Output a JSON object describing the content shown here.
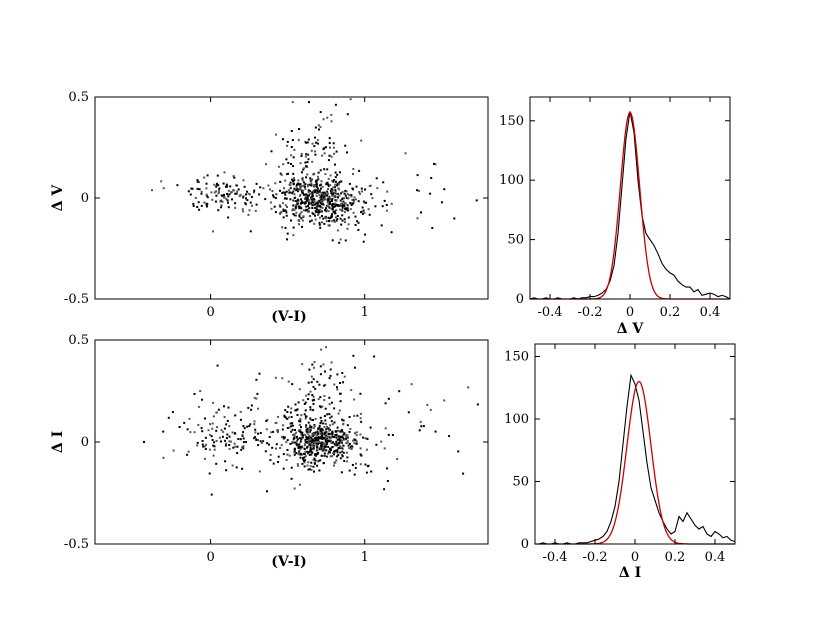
{
  "chart_data": [
    {
      "id": "scatter_v",
      "type": "scatter",
      "xlabel": "(V-I)",
      "ylabel": "Δ V",
      "xlim": [
        -0.75,
        1.8
      ],
      "ylim": [
        -0.5,
        0.5
      ],
      "x_ticks": [
        0,
        1
      ],
      "y_ticks": [
        -0.5,
        0,
        0.5
      ],
      "x_tick_labels": [
        "0",
        "1"
      ],
      "y_tick_labels": [
        "-0.5",
        "0",
        "0.5"
      ],
      "point_color": "#000000",
      "clusters": [
        {
          "center": [
            0.08,
            0.01
          ],
          "spread": [
            0.14,
            0.05
          ],
          "count": 120
        },
        {
          "center": [
            0.7,
            -0.01
          ],
          "spread": [
            0.14,
            0.06
          ],
          "count": 520
        },
        {
          "center": [
            0.68,
            0.22
          ],
          "spread": [
            0.13,
            0.12
          ],
          "count": 110
        },
        {
          "center": [
            0.9,
            0.0
          ],
          "spread": [
            0.4,
            0.12
          ],
          "count": 70
        }
      ]
    },
    {
      "id": "hist_v",
      "type": "line",
      "xlabel": "Δ V",
      "ylabel": "",
      "xlim": [
        -0.5,
        0.5
      ],
      "ylim": [
        0,
        170
      ],
      "x_ticks": [
        -0.4,
        -0.2,
        0,
        0.2,
        0.4
      ],
      "y_ticks": [
        0,
        50,
        100,
        150
      ],
      "x_tick_labels": [
        "-0.4",
        "-0.2",
        "0",
        "0.2",
        "0.4"
      ],
      "y_tick_labels": [
        "0",
        "50",
        "100",
        "150"
      ],
      "series": [
        {
          "name": "histogram",
          "color": "#000000",
          "x": [
            -0.5,
            -0.48,
            -0.46,
            -0.44,
            -0.42,
            -0.4,
            -0.38,
            -0.36,
            -0.34,
            -0.32,
            -0.3,
            -0.28,
            -0.26,
            -0.24,
            -0.22,
            -0.2,
            -0.18,
            -0.16,
            -0.14,
            -0.12,
            -0.1,
            -0.08,
            -0.06,
            -0.04,
            -0.02,
            0,
            0.02,
            0.04,
            0.06,
            0.08,
            0.1,
            0.12,
            0.14,
            0.16,
            0.18,
            0.2,
            0.22,
            0.24,
            0.26,
            0.28,
            0.3,
            0.32,
            0.34,
            0.36,
            0.38,
            0.4,
            0.42,
            0.44,
            0.46,
            0.48,
            0.5
          ],
          "values": [
            0,
            1,
            0,
            0,
            1,
            0,
            0,
            1,
            0,
            0,
            0,
            1,
            0,
            1,
            1,
            2,
            2,
            3,
            5,
            8,
            15,
            28,
            55,
            95,
            135,
            158,
            140,
            100,
            70,
            55,
            50,
            45,
            38,
            30,
            25,
            22,
            20,
            15,
            12,
            10,
            10,
            6,
            8,
            3,
            4,
            5,
            4,
            2,
            3,
            2,
            0
          ]
        },
        {
          "name": "gaussian fit",
          "color": "#cc0000",
          "amplitude": 157,
          "mean": 0.0,
          "sigma": 0.048
        }
      ]
    },
    {
      "id": "scatter_i",
      "type": "scatter",
      "xlabel": "(V-I)",
      "ylabel": "Δ I",
      "xlim": [
        -0.75,
        1.8
      ],
      "ylim": [
        -0.5,
        0.5
      ],
      "x_ticks": [
        0,
        1
      ],
      "y_ticks": [
        -0.5,
        0,
        0.5
      ],
      "x_tick_labels": [
        "0",
        "1"
      ],
      "y_tick_labels": [
        "-0.5",
        "0",
        "0.5"
      ],
      "point_color": "#000000",
      "clusters": [
        {
          "center": [
            0.1,
            0.03
          ],
          "spread": [
            0.15,
            0.08
          ],
          "count": 130
        },
        {
          "center": [
            0.7,
            0.0
          ],
          "spread": [
            0.14,
            0.06
          ],
          "count": 500
        },
        {
          "center": [
            0.7,
            0.2
          ],
          "spread": [
            0.13,
            0.12
          ],
          "count": 120
        },
        {
          "center": [
            0.8,
            0.05
          ],
          "spread": [
            0.5,
            0.15
          ],
          "count": 70
        }
      ]
    },
    {
      "id": "hist_i",
      "type": "line",
      "xlabel": "Δ I",
      "ylabel": "",
      "xlim": [
        -0.5,
        0.5
      ],
      "ylim": [
        0,
        160
      ],
      "x_ticks": [
        -0.4,
        -0.2,
        0,
        0.2,
        0.4
      ],
      "y_ticks": [
        0,
        50,
        100,
        150
      ],
      "x_tick_labels": [
        "-0.4",
        "-0.2",
        "0",
        "0.2",
        "0.4"
      ],
      "y_tick_labels": [
        "0",
        "50",
        "100",
        "150"
      ],
      "series": [
        {
          "name": "histogram",
          "color": "#000000",
          "x": [
            -0.5,
            -0.48,
            -0.46,
            -0.44,
            -0.42,
            -0.4,
            -0.38,
            -0.36,
            -0.34,
            -0.32,
            -0.3,
            -0.28,
            -0.26,
            -0.24,
            -0.22,
            -0.2,
            -0.18,
            -0.16,
            -0.14,
            -0.12,
            -0.1,
            -0.08,
            -0.06,
            -0.04,
            -0.02,
            0,
            0.02,
            0.04,
            0.06,
            0.08,
            0.1,
            0.12,
            0.14,
            0.16,
            0.18,
            0.2,
            0.22,
            0.24,
            0.26,
            0.28,
            0.3,
            0.32,
            0.34,
            0.36,
            0.38,
            0.4,
            0.42,
            0.44,
            0.46,
            0.48,
            0.5
          ],
          "values": [
            0,
            0,
            1,
            0,
            0,
            1,
            0,
            0,
            1,
            0,
            0,
            1,
            1,
            1,
            2,
            3,
            4,
            6,
            10,
            18,
            30,
            50,
            80,
            110,
            135,
            128,
            115,
            90,
            65,
            45,
            35,
            25,
            18,
            12,
            8,
            10,
            22,
            18,
            25,
            20,
            15,
            12,
            14,
            8,
            6,
            10,
            8,
            5,
            6,
            3,
            2
          ]
        },
        {
          "name": "gaussian fit",
          "color": "#cc0000",
          "amplitude": 130,
          "mean": 0.02,
          "sigma": 0.06
        }
      ]
    }
  ]
}
